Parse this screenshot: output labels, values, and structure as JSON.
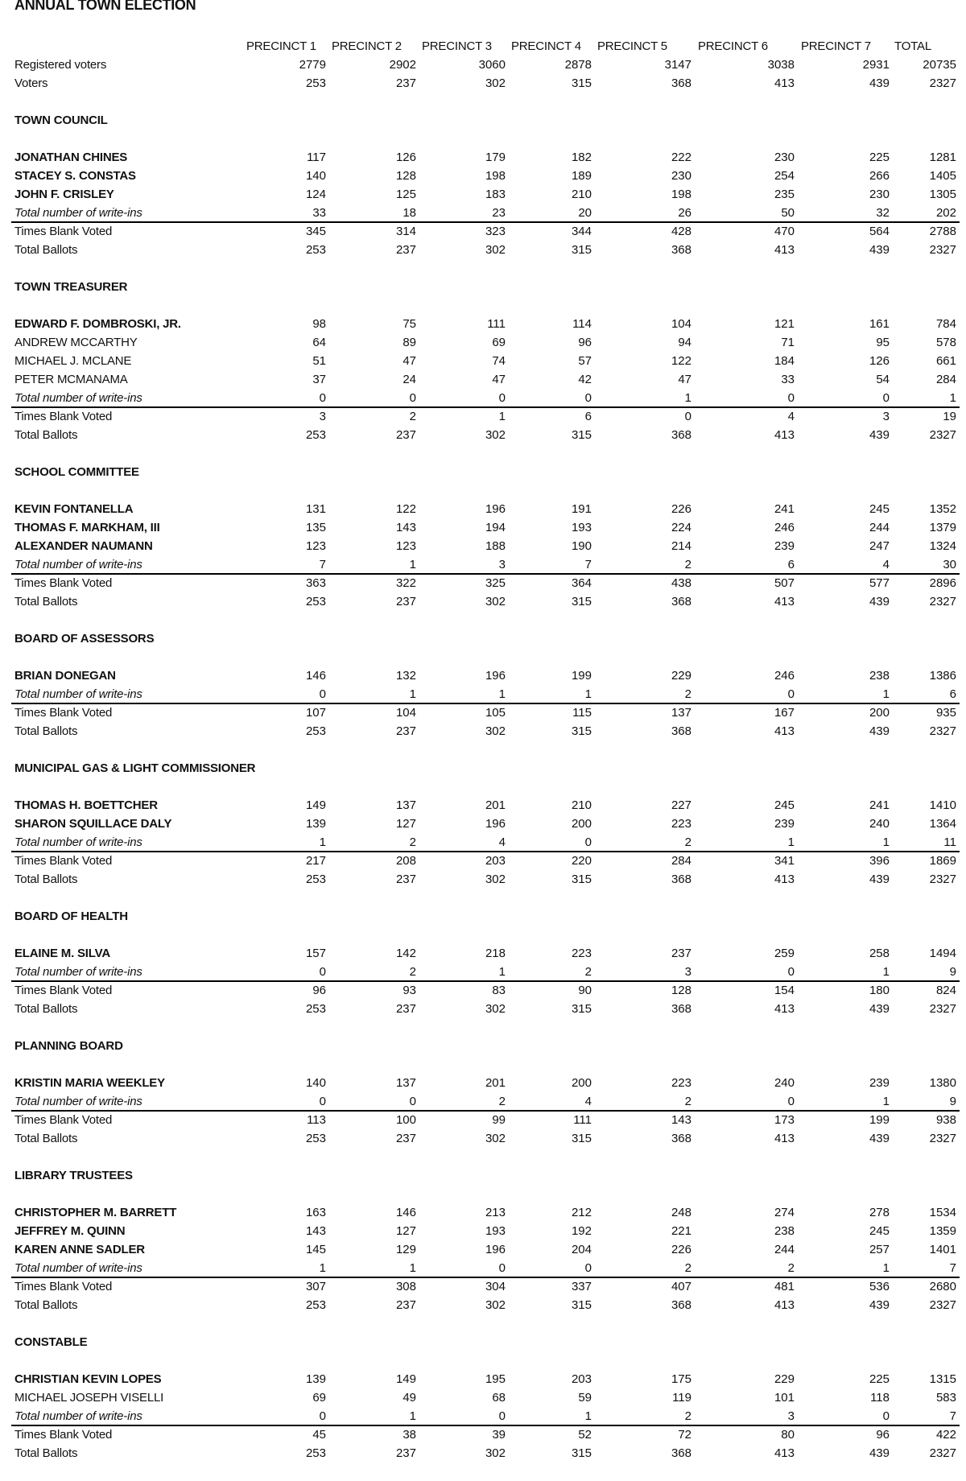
{
  "title": "ANNUAL TOWN ELECTION",
  "columns": [
    "PRECINCT 1",
    "PRECINCT 2",
    "PRECINCT 3",
    "PRECINCT 4",
    "PRECINCT 5",
    "PRECINCT 6",
    "PRECINCT 7",
    "TOTAL"
  ],
  "summary": [
    {
      "label": "Registered voters",
      "values": [
        "2779",
        "2902",
        "3060",
        "2878",
        "3147",
        "3038",
        "2931",
        "20735"
      ]
    },
    {
      "label": "Voters",
      "values": [
        "253",
        "237",
        "302",
        "315",
        "368",
        "413",
        "439",
        "2327"
      ]
    }
  ],
  "sections": [
    {
      "title": "TOWN COUNCIL",
      "candidates": [
        {
          "name": "JONATHAN CHINES",
          "emphasized": true,
          "values": [
            "117",
            "126",
            "179",
            "182",
            "222",
            "230",
            "225",
            "1281"
          ]
        },
        {
          "name": "STACEY S. CONSTAS",
          "emphasized": true,
          "values": [
            "140",
            "128",
            "198",
            "189",
            "230",
            "254",
            "266",
            "1405"
          ]
        },
        {
          "name": "JOHN F. CRISLEY",
          "emphasized": true,
          "values": [
            "124",
            "125",
            "183",
            "210",
            "198",
            "235",
            "230",
            "1305"
          ]
        }
      ],
      "write_ins": {
        "label": "Total number of write-ins",
        "values": [
          "33",
          "18",
          "23",
          "20",
          "26",
          "50",
          "32",
          "202"
        ]
      },
      "blank": {
        "label": "Times Blank Voted",
        "values": [
          "345",
          "314",
          "323",
          "344",
          "428",
          "470",
          "564",
          "2788"
        ]
      },
      "ballots": {
        "label": "Total Ballots",
        "values": [
          "253",
          "237",
          "302",
          "315",
          "368",
          "413",
          "439",
          "2327"
        ]
      }
    },
    {
      "title": "TOWN TREASURER",
      "candidates": [
        {
          "name": "EDWARD F. DOMBROSKI, JR.",
          "emphasized": true,
          "values": [
            "98",
            "75",
            "111",
            "114",
            "104",
            "121",
            "161",
            "784"
          ]
        },
        {
          "name": "ANDREW MCCARTHY",
          "emphasized": false,
          "values": [
            "64",
            "89",
            "69",
            "96",
            "94",
            "71",
            "95",
            "578"
          ]
        },
        {
          "name": "MICHAEL J. MCLANE",
          "emphasized": false,
          "values": [
            "51",
            "47",
            "74",
            "57",
            "122",
            "184",
            "126",
            "661"
          ]
        },
        {
          "name": "PETER MCMANAMA",
          "emphasized": false,
          "values": [
            "37",
            "24",
            "47",
            "42",
            "47",
            "33",
            "54",
            "284"
          ]
        }
      ],
      "write_ins": {
        "label": "Total number of write-ins",
        "values": [
          "0",
          "0",
          "0",
          "0",
          "1",
          "0",
          "0",
          "1"
        ]
      },
      "blank": {
        "label": "Times Blank Voted",
        "values": [
          "3",
          "2",
          "1",
          "6",
          "0",
          "4",
          "3",
          "19"
        ]
      },
      "ballots": {
        "label": "Total Ballots",
        "values": [
          "253",
          "237",
          "302",
          "315",
          "368",
          "413",
          "439",
          "2327"
        ]
      }
    },
    {
      "title": "SCHOOL COMMITTEE",
      "candidates": [
        {
          "name": "KEVIN FONTANELLA",
          "emphasized": true,
          "values": [
            "131",
            "122",
            "196",
            "191",
            "226",
            "241",
            "245",
            "1352"
          ]
        },
        {
          "name": "THOMAS F. MARKHAM, III",
          "emphasized": true,
          "values": [
            "135",
            "143",
            "194",
            "193",
            "224",
            "246",
            "244",
            "1379"
          ]
        },
        {
          "name": "ALEXANDER NAUMANN",
          "emphasized": true,
          "values": [
            "123",
            "123",
            "188",
            "190",
            "214",
            "239",
            "247",
            "1324"
          ]
        }
      ],
      "write_ins": {
        "label": "Total number of write-ins",
        "values": [
          "7",
          "1",
          "3",
          "7",
          "2",
          "6",
          "4",
          "30"
        ]
      },
      "blank": {
        "label": "Times Blank Voted",
        "values": [
          "363",
          "322",
          "325",
          "364",
          "438",
          "507",
          "577",
          "2896"
        ]
      },
      "ballots": {
        "label": "Total Ballots",
        "values": [
          "253",
          "237",
          "302",
          "315",
          "368",
          "413",
          "439",
          "2327"
        ]
      }
    },
    {
      "title": "BOARD OF ASSESSORS",
      "candidates": [
        {
          "name": "BRIAN DONEGAN",
          "emphasized": true,
          "values": [
            "146",
            "132",
            "196",
            "199",
            "229",
            "246",
            "238",
            "1386"
          ]
        }
      ],
      "write_ins": {
        "label": "Total number of write-ins",
        "values": [
          "0",
          "1",
          "1",
          "1",
          "2",
          "0",
          "1",
          "6"
        ]
      },
      "blank": {
        "label": "Times Blank Voted",
        "values": [
          "107",
          "104",
          "105",
          "115",
          "137",
          "167",
          "200",
          "935"
        ]
      },
      "ballots": {
        "label": "Total Ballots",
        "values": [
          "253",
          "237",
          "302",
          "315",
          "368",
          "413",
          "439",
          "2327"
        ]
      }
    },
    {
      "title": "MUNICIPAL GAS & LIGHT COMMISSIONER",
      "candidates": [
        {
          "name": "THOMAS H. BOETTCHER",
          "emphasized": true,
          "values": [
            "149",
            "137",
            "201",
            "210",
            "227",
            "245",
            "241",
            "1410"
          ]
        },
        {
          "name": "SHARON SQUILLACE DALY",
          "emphasized": true,
          "values": [
            "139",
            "127",
            "196",
            "200",
            "223",
            "239",
            "240",
            "1364"
          ]
        }
      ],
      "write_ins": {
        "label": "Total number of write-ins",
        "values": [
          "1",
          "2",
          "4",
          "0",
          "2",
          "1",
          "1",
          "11"
        ]
      },
      "blank": {
        "label": "Times Blank Voted",
        "values": [
          "217",
          "208",
          "203",
          "220",
          "284",
          "341",
          "396",
          "1869"
        ]
      },
      "ballots": {
        "label": "Total Ballots",
        "values": [
          "253",
          "237",
          "302",
          "315",
          "368",
          "413",
          "439",
          "2327"
        ]
      }
    },
    {
      "title": "BOARD OF HEALTH",
      "candidates": [
        {
          "name": "ELAINE M. SILVA",
          "emphasized": true,
          "values": [
            "157",
            "142",
            "218",
            "223",
            "237",
            "259",
            "258",
            "1494"
          ]
        }
      ],
      "write_ins": {
        "label": "Total number of write-ins",
        "values": [
          "0",
          "2",
          "1",
          "2",
          "3",
          "0",
          "1",
          "9"
        ]
      },
      "blank": {
        "label": "Times Blank Voted",
        "values": [
          "96",
          "93",
          "83",
          "90",
          "128",
          "154",
          "180",
          "824"
        ]
      },
      "ballots": {
        "label": "Total Ballots",
        "values": [
          "253",
          "237",
          "302",
          "315",
          "368",
          "413",
          "439",
          "2327"
        ]
      }
    },
    {
      "title": "PLANNING BOARD",
      "candidates": [
        {
          "name": "KRISTIN MARIA WEEKLEY",
          "emphasized": true,
          "values": [
            "140",
            "137",
            "201",
            "200",
            "223",
            "240",
            "239",
            "1380"
          ]
        }
      ],
      "write_ins": {
        "label": "Total number of write-ins",
        "values": [
          "0",
          "0",
          "2",
          "4",
          "2",
          "0",
          "1",
          "9"
        ]
      },
      "blank": {
        "label": "Times Blank Voted",
        "values": [
          "113",
          "100",
          "99",
          "111",
          "143",
          "173",
          "199",
          "938"
        ]
      },
      "ballots": {
        "label": "Total Ballots",
        "values": [
          "253",
          "237",
          "302",
          "315",
          "368",
          "413",
          "439",
          "2327"
        ]
      }
    },
    {
      "title": "LIBRARY TRUSTEES",
      "candidates": [
        {
          "name": "CHRISTOPHER M. BARRETT",
          "emphasized": true,
          "values": [
            "163",
            "146",
            "213",
            "212",
            "248",
            "274",
            "278",
            "1534"
          ]
        },
        {
          "name": "JEFFREY M. QUINN",
          "emphasized": true,
          "values": [
            "143",
            "127",
            "193",
            "192",
            "221",
            "238",
            "245",
            "1359"
          ]
        },
        {
          "name": "KAREN ANNE SADLER",
          "emphasized": true,
          "values": [
            "145",
            "129",
            "196",
            "204",
            "226",
            "244",
            "257",
            "1401"
          ]
        }
      ],
      "write_ins": {
        "label": "Total number of write-ins",
        "values": [
          "1",
          "1",
          "0",
          "0",
          "2",
          "2",
          "1",
          "7"
        ]
      },
      "blank": {
        "label": "Times Blank Voted",
        "values": [
          "307",
          "308",
          "304",
          "337",
          "407",
          "481",
          "536",
          "2680"
        ]
      },
      "ballots": {
        "label": "Total Ballots",
        "values": [
          "253",
          "237",
          "302",
          "315",
          "368",
          "413",
          "439",
          "2327"
        ]
      }
    },
    {
      "title": "CONSTABLE",
      "candidates": [
        {
          "name": "CHRISTIAN KEVIN LOPES",
          "emphasized": true,
          "values": [
            "139",
            "149",
            "195",
            "203",
            "175",
            "229",
            "225",
            "1315"
          ]
        },
        {
          "name": "MICHAEL JOSEPH VISELLI",
          "emphasized": false,
          "values": [
            "69",
            "49",
            "68",
            "59",
            "119",
            "101",
            "118",
            "583"
          ]
        }
      ],
      "write_ins": {
        "label": "Total number of write-ins",
        "values": [
          "0",
          "1",
          "0",
          "1",
          "2",
          "3",
          "0",
          "7"
        ]
      },
      "blank": {
        "label": "Times Blank Voted",
        "values": [
          "45",
          "38",
          "39",
          "52",
          "72",
          "80",
          "96",
          "422"
        ]
      },
      "ballots": {
        "label": "Total Ballots",
        "values": [
          "253",
          "237",
          "302",
          "315",
          "368",
          "413",
          "439",
          "2327"
        ]
      }
    }
  ]
}
